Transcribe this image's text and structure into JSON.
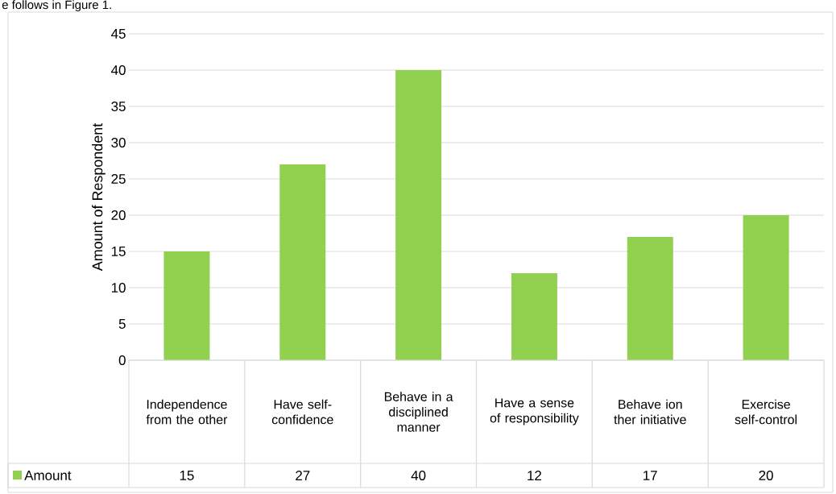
{
  "chart_data": {
    "type": "bar",
    "ylabel": "Amount of Respondent",
    "categories": [
      "Independence from the other",
      "Have self-confidence",
      "Behave in a disciplined manner",
      "Have a sense of responsibility",
      "Behave ion ther initiative",
      "Exercise self-control"
    ],
    "series": [
      {
        "name": "Amount",
        "color": "#92d050",
        "values": [
          15,
          27,
          40,
          12,
          17,
          20
        ]
      }
    ],
    "ylim": [
      0,
      45
    ],
    "yticks": [
      0,
      5,
      10,
      15,
      20,
      25,
      30,
      35,
      40,
      45
    ],
    "grid": "y",
    "legend": "bottom",
    "data_labels": true,
    "annotations": [
      "e follows in Figure 1."
    ]
  }
}
